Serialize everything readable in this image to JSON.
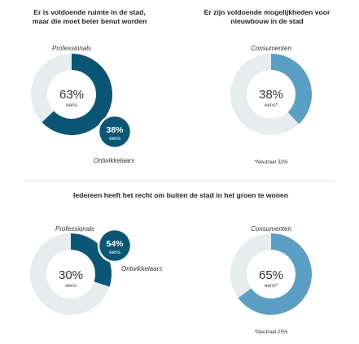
{
  "colors": {
    "dark_blue": "#0b5675",
    "light_blue": "#5a9ec4",
    "ring_bg": "#e7ecef",
    "divider": "#cccccc"
  },
  "chart_data": [
    {
      "type": "pie",
      "title": "Er is voldoende ruimte in de stad, maar die moet beter benut worden",
      "group_label": "Professionals",
      "value": 63,
      "value_label": "63%",
      "sub_label": "eens",
      "comparison": {
        "group_label": "Ontwikkelaars",
        "value": 38,
        "value_label": "38%",
        "sub_label": "eens"
      }
    },
    {
      "type": "pie",
      "title": "Er zijn voldoende mogelijkheden voor nieuwbouw in de stad",
      "group_label": "Consumenten",
      "value": 38,
      "value_label": "38%",
      "sub_label": "eens*",
      "note": "*Neutraal 32%"
    },
    {
      "type": "pie",
      "title": "Iedereen heeft het recht om buiten de stad in het groen te wonen",
      "group_label": "Professionals",
      "value": 30,
      "value_label": "30%",
      "sub_label": "eens",
      "comparison": {
        "group_label": "Ontwikkelaars",
        "value": 54,
        "value_label": "54%",
        "sub_label": "eens"
      }
    },
    {
      "type": "pie",
      "group_label": "Consumenten",
      "value": 65,
      "value_label": "65%",
      "sub_label": "eens*",
      "note": "*Neutraal 25%"
    }
  ],
  "headings": {
    "q1_line1": "Er is voldoende ruimte in de stad,",
    "q1_line2": "maar die moet beter benut worden",
    "q2_line1": "Er zijn voldoende mogelijkheden voor",
    "q2_line2": "nieuwbouw in de stad",
    "q3": "Iedereen heeft het recht om buiten de stad in het groen te wonen"
  }
}
